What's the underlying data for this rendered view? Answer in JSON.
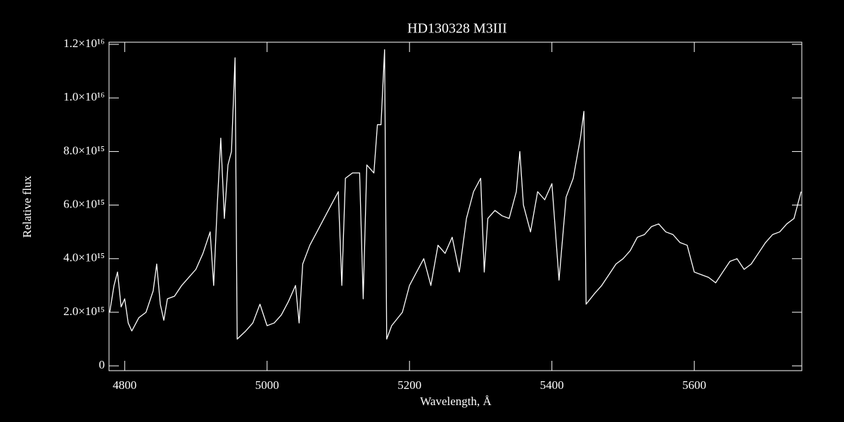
{
  "chart_data": {
    "type": "line",
    "title": "HD130328   M3III",
    "xlabel": "Wavelength, Å",
    "ylabel": "Relative flux",
    "color": "#ffffff",
    "x": [
      4779,
      4785,
      4790,
      4795,
      4800,
      4805,
      4810,
      4820,
      4830,
      4840,
      4845,
      4850,
      4855,
      4860,
      4870,
      4880,
      4890,
      4900,
      4910,
      4920,
      4925,
      4930,
      4935,
      4940,
      4945,
      4950,
      4955,
      4958,
      4970,
      4980,
      4990,
      5000,
      5010,
      5020,
      5030,
      5040,
      5045,
      5050,
      5060,
      5070,
      5080,
      5090,
      5100,
      5105,
      5110,
      5120,
      5130,
      5135,
      5140,
      5150,
      5155,
      5160,
      5165,
      5168,
      5175,
      5190,
      5200,
      5210,
      5220,
      5230,
      5240,
      5250,
      5260,
      5270,
      5280,
      5290,
      5300,
      5305,
      5310,
      5320,
      5330,
      5340,
      5350,
      5355,
      5360,
      5370,
      5380,
      5390,
      5400,
      5410,
      5420,
      5430,
      5440,
      5445,
      5448,
      5460,
      5470,
      5480,
      5490,
      5500,
      5510,
      5520,
      5530,
      5540,
      5550,
      5560,
      5570,
      5580,
      5590,
      5600,
      5610,
      5620,
      5630,
      5640,
      5650,
      5660,
      5670,
      5680,
      5690,
      5700,
      5710,
      5720,
      5730,
      5740,
      5750
    ],
    "values": [
      2000000000000000.0,
      3000000000000000.0,
      3500000000000000.0,
      2200000000000000.0,
      2500000000000000.0,
      1600000000000000.0,
      1300000000000000.0,
      1800000000000000.0,
      2000000000000000.0,
      2800000000000000.0,
      3800000000000000.0,
      2300000000000000.0,
      1700000000000000.0,
      2500000000000000.0,
      2600000000000000.0,
      3000000000000000.0,
      3300000000000000.0,
      3600000000000000.0,
      4200000000000000.0,
      5000000000000000.0,
      3000000000000000.0,
      6000000000000000.0,
      8500000000000000.0,
      5500000000000000.0,
      7500000000000000.0,
      8000000000000000.0,
      1.15e+16,
      1000000000000000.0,
      1300000000000000.0,
      1600000000000000.0,
      2300000000000000.0,
      1500000000000000.0,
      1600000000000000.0,
      1900000000000000.0,
      2400000000000000.0,
      3000000000000000.0,
      1600000000000000.0,
      3800000000000000.0,
      4500000000000000.0,
      5000000000000000.0,
      5500000000000000.0,
      6000000000000000.0,
      6500000000000000.0,
      3000000000000000.0,
      7000000000000000.0,
      7200000000000000.0,
      7200000000000000.0,
      2500000000000000.0,
      7500000000000000.0,
      7200000000000000.0,
      9000000000000000.0,
      9000000000000000.0,
      1.18e+16,
      1000000000000000.0,
      1500000000000000.0,
      2000000000000000.0,
      3000000000000000.0,
      3500000000000000.0,
      4000000000000000.0,
      3000000000000000.0,
      4500000000000000.0,
      4200000000000000.0,
      4800000000000000.0,
      3500000000000000.0,
      5500000000000000.0,
      6500000000000000.0,
      7000000000000000.0,
      3500000000000000.0,
      5500000000000000.0,
      5800000000000000.0,
      5600000000000000.0,
      5500000000000000.0,
      6500000000000000.0,
      8000000000000000.0,
      6000000000000000.0,
      5000000000000000.0,
      6500000000000000.0,
      6200000000000000.0,
      6800000000000000.0,
      3200000000000000.0,
      6300000000000000.0,
      7000000000000000.0,
      8500000000000000.0,
      9500000000000000.0,
      2300000000000000.0,
      2700000000000000.0,
      3000000000000000.0,
      3400000000000000.0,
      3800000000000000.0,
      4000000000000000.0,
      4300000000000000.0,
      4800000000000000.0,
      4900000000000000.0,
      5200000000000000.0,
      5300000000000000.0,
      5000000000000000.0,
      4900000000000000.0,
      4600000000000000.0,
      4500000000000000.0,
      3500000000000000.0,
      3400000000000000.0,
      3300000000000000.0,
      3100000000000000.0,
      3500000000000000.0,
      3900000000000000.0,
      4000000000000000.0,
      3600000000000000.0,
      3800000000000000.0,
      4200000000000000.0,
      4600000000000000.0,
      4900000000000000.0,
      5000000000000000.0,
      5300000000000000.0,
      5500000000000000.0,
      6500000000000000.0
    ],
    "xlim": [
      4778,
      5751
    ],
    "ylim": [
      -180000000000000.0,
      1.208e+16
    ],
    "xticks": [
      4800,
      5000,
      5200,
      5400,
      5600
    ],
    "yticks": [
      0,
      {
        "value": 2000000000000000.0,
        "label": "2.0×10¹⁵"
      },
      {
        "value": 4000000000000000.0,
        "label": "4.0×10¹⁵"
      },
      {
        "value": 6000000000000000.0,
        "label": "6.0×10¹⁵"
      },
      {
        "value": 8000000000000000.0,
        "label": "8.0×10¹⁵"
      },
      {
        "value": 1e+16,
        "label": "1.0×10¹⁶"
      },
      {
        "value": 1.2e+16,
        "label": "1.2×10¹⁶"
      }
    ]
  }
}
